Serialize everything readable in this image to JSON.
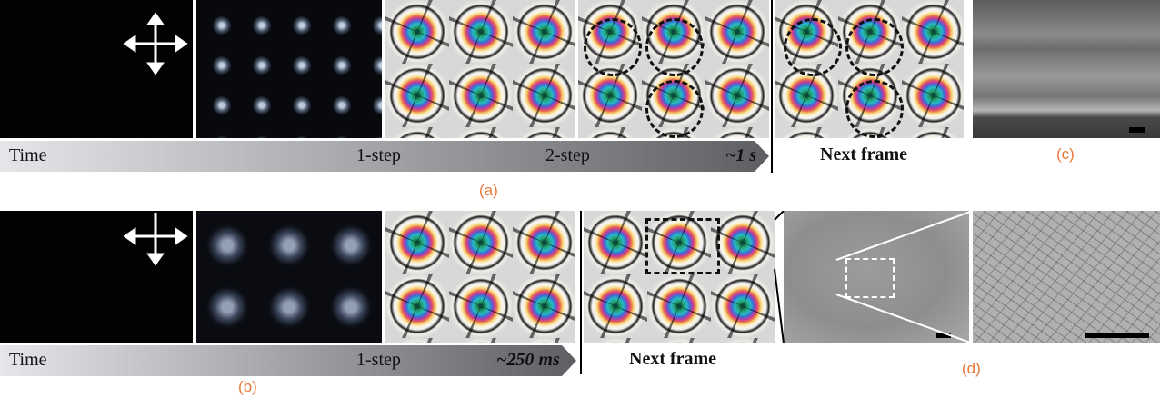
{
  "row_a": {
    "time": "Time",
    "step1": "1-step",
    "step2": "2-step",
    "duration": "~1 s",
    "next_frame": "Next frame",
    "label": "(a)",
    "label_c": "(c)"
  },
  "row_b": {
    "time": "Time",
    "step1": "1-step",
    "duration": "~250 ms",
    "next_frame": "Next frame",
    "label": "(b)",
    "label_d": "(d)"
  }
}
